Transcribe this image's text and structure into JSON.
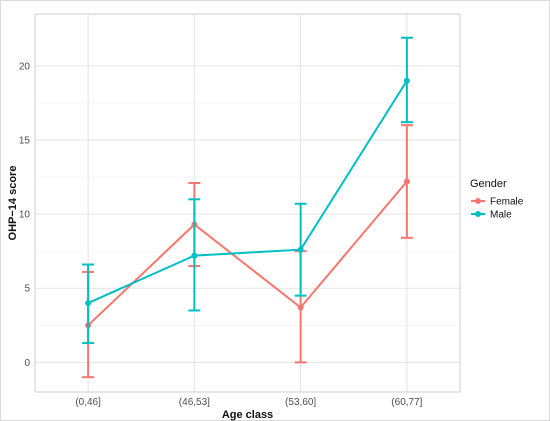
{
  "chart_data": {
    "type": "line",
    "title": "",
    "xlabel": "Age class",
    "ylabel": "OHP−14 score",
    "categories": [
      "(0,46]",
      "(46,53]",
      "(53,60]",
      "(60,77]"
    ],
    "ylim": [
      -2,
      23.5
    ],
    "yticks": [
      0,
      5,
      10,
      15,
      20
    ],
    "grid": true,
    "legend": {
      "title": "Gender",
      "position": "right"
    },
    "series": [
      {
        "name": "Female",
        "color": "#F8766D",
        "values": [
          2.5,
          9.3,
          3.7,
          12.2
        ],
        "lower": [
          -1.0,
          6.5,
          0.0,
          8.4
        ],
        "upper": [
          6.1,
          12.1,
          7.5,
          16.0
        ]
      },
      {
        "name": "Male",
        "color": "#00BFC4",
        "values": [
          4.0,
          7.2,
          7.6,
          19.0
        ],
        "lower": [
          1.3,
          3.5,
          4.5,
          16.2
        ],
        "upper": [
          6.6,
          11.0,
          10.7,
          21.9
        ]
      }
    ]
  }
}
